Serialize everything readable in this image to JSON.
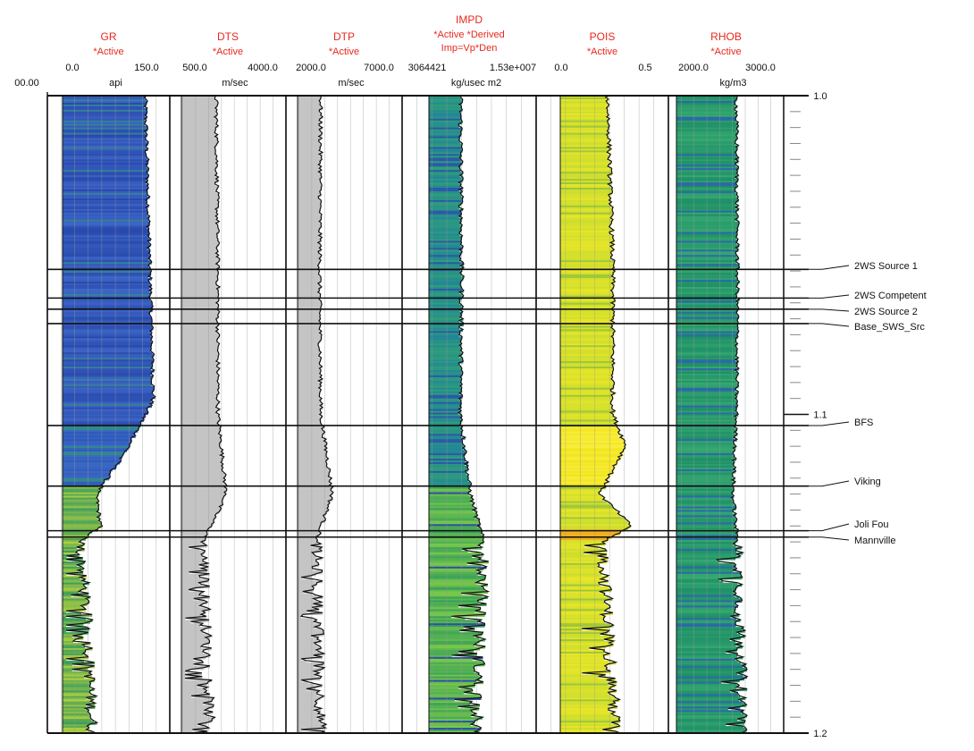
{
  "chart_data": {
    "type": "well_log",
    "y_axis": {
      "min": 1.0,
      "max": 1.2,
      "tick_labels": [
        "1.0",
        "1.1",
        "1.2"
      ]
    },
    "left_edge_label": "00.00",
    "tracks": [
      {
        "id": "gr",
        "name": "GR",
        "sub": [
          "*Active"
        ],
        "min_label": "0.0",
        "max_label": "150.0",
        "unit": "api",
        "scale": [
          0,
          150
        ],
        "fill_color": "#2f56b8",
        "approx_values": {
          "1.000": 120,
          "1.050": 125,
          "1.095": 130,
          "1.110": 100,
          "1.125": 60,
          "1.135": 65,
          "1.140": 40,
          "1.170": 50,
          "1.200": 55
        }
      },
      {
        "id": "dts",
        "name": "DTS",
        "sub": [
          "*Active"
        ],
        "min_label": "500.0",
        "max_label": "4000.0",
        "unit": "m/sec",
        "scale": [
          500,
          4000
        ],
        "fill_color": "#c4c4c4",
        "approx_values": {
          "1.000": 1900,
          "1.060": 1950,
          "1.100": 1950,
          "1.125": 2200,
          "1.140": 1500,
          "1.200": 1700
        }
      },
      {
        "id": "dtp",
        "name": "DTP",
        "sub": [
          "*Active"
        ],
        "min_label": "2000.0",
        "max_label": "7000.0",
        "unit": "m/sec",
        "scale": [
          2000,
          7000
        ],
        "fill_color": "#c4c4c4",
        "approx_values": {
          "1.000": 3500,
          "1.060": 3450,
          "1.100": 3500,
          "1.125": 4000,
          "1.140": 3300,
          "1.200": 3500
        }
      },
      {
        "id": "impd",
        "name": "IMPD",
        "sub": [
          "*Active *Derived",
          "Imp=Vp*Den"
        ],
        "min_label": "3064421",
        "max_label": "1.53e+007",
        "unit": "kg/usec m2",
        "scale": [
          3064421,
          15300000
        ],
        "fill_color": "#2e9e6e",
        "approx_values": {
          "1.000": 8400000,
          "1.060": 8500000,
          "1.100": 8400000,
          "1.125": 9300000,
          "1.140": 10500000,
          "1.200": 9800000
        }
      },
      {
        "id": "pois",
        "name": "POIS",
        "sub": [
          "*Active"
        ],
        "min_label": "0.0",
        "max_label": "0.5",
        "unit": "",
        "scale": [
          0,
          0.5
        ],
        "fill_color": "#d4e12c",
        "approx_values": {
          "1.000": 0.27,
          "1.055": 0.29,
          "1.100": 0.29,
          "1.110": 0.34,
          "1.125": 0.24,
          "1.135": 0.36,
          "1.140": 0.25,
          "1.200": 0.3
        }
      },
      {
        "id": "rhob",
        "name": "RHOB",
        "sub": [
          "*Active"
        ],
        "min_label": "2000.0",
        "max_label": "3000.0",
        "unit": "kg/m3",
        "scale": [
          2000,
          3000
        ],
        "fill_color": "#1f8f68",
        "approx_values": {
          "1.000": 2590,
          "1.060": 2600,
          "1.100": 2590,
          "1.125": 2560,
          "1.140": 2600,
          "1.200": 2650
        }
      }
    ],
    "formation_tops": [
      {
        "name": "2WS Source 1",
        "time": 1.0545
      },
      {
        "name": "2WS Competent",
        "time": 1.0635
      },
      {
        "name": "2WS Source 2",
        "time": 1.067
      },
      {
        "name": "Base_SWS_Src",
        "time": 1.0715
      },
      {
        "name": "BFS",
        "time": 1.1035
      },
      {
        "name": "Viking",
        "time": 1.1225
      },
      {
        "name": "Joli Fou",
        "time": 1.1365
      },
      {
        "name": "Mannville",
        "time": 1.1385
      }
    ]
  }
}
